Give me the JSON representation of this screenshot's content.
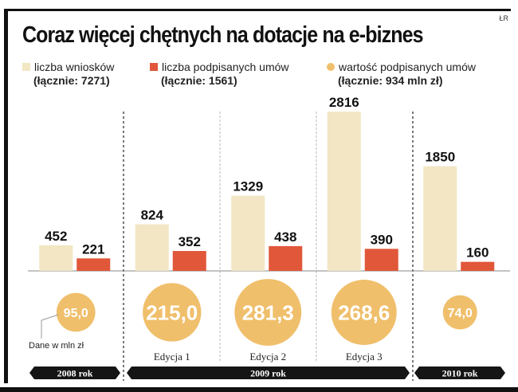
{
  "source": "ŁR",
  "chart_data": {
    "type": "bar",
    "title": "Coraz więcej chętnych na dotacje na e-biznes",
    "categories": [
      "2008 rok",
      "Edycja 1",
      "Edycja 2",
      "Edycja 3",
      "2010 rok"
    ],
    "groups": [
      {
        "label": "2008 rok",
        "members": [
          0
        ]
      },
      {
        "label": "2009 rok",
        "members": [
          1,
          2,
          3
        ]
      },
      {
        "label": "2010 rok",
        "members": [
          4
        ]
      }
    ],
    "edition_labels": [
      "",
      "Edycja 1",
      "Edycja 2",
      "Edycja 3",
      ""
    ],
    "series": [
      {
        "name": "liczba wniosków",
        "total_label": "(łącznie: 7271)",
        "color": "#f2e6c4",
        "values": [
          452,
          824,
          1329,
          2816,
          1850
        ]
      },
      {
        "name": "liczba podpisanych umów",
        "total_label": "(łącznie: 1561)",
        "color": "#e0573a",
        "values": [
          221,
          352,
          438,
          390,
          160
        ]
      },
      {
        "name": "wartość podpisanych umów",
        "total_label": "(łącznie: 934 mln zł)",
        "color": "#f0bf6b",
        "type": "bubble",
        "values": [
          95.0,
          215.0,
          281.3,
          268.6,
          74.0
        ],
        "value_labels": [
          "95,0",
          "215,0",
          "281,3",
          "268,6",
          "74,0"
        ]
      }
    ],
    "bubble_note": "Dane w mln zł",
    "ylim": [
      0,
      2816
    ],
    "grid": false,
    "legend": "top"
  }
}
